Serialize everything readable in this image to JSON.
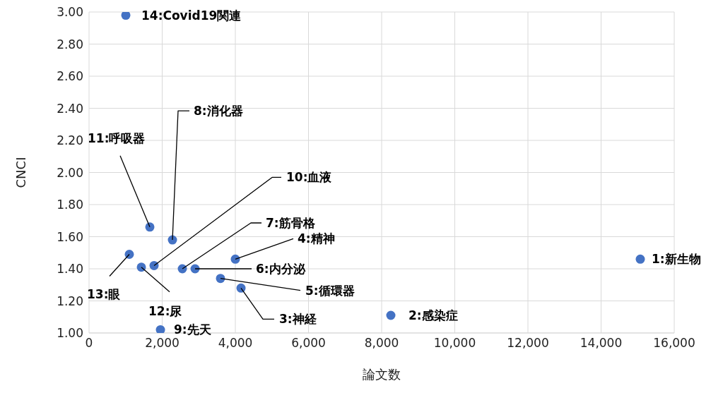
{
  "chart_data": {
    "type": "scatter",
    "xlabel": "論文数",
    "ylabel": "CNCI",
    "x": [
      15072,
      8251,
      4155,
      4000,
      3594,
      2899,
      2551,
      2280,
      1952,
      1778,
      1662,
      1430,
      1101,
      1005
    ],
    "series": [
      {
        "color": "#4472c4",
        "values": [
          1.46,
          1.11,
          1.28,
          1.46,
          1.34,
          1.4,
          1.4,
          1.58,
          1.02,
          1.42,
          1.66,
          1.41,
          1.49,
          2.98
        ]
      }
    ],
    "xlim": [
      0,
      16000
    ],
    "xticks": [
      0,
      {
        "value": 2000,
        "label": "2,000"
      },
      {
        "value": 4000,
        "label": "4,000"
      },
      {
        "value": 6000,
        "label": "6,000"
      },
      {
        "value": 8000,
        "label": "8,000"
      },
      {
        "value": 10000,
        "label": "10,000"
      },
      {
        "value": 12000,
        "label": "12,000"
      },
      {
        "value": 14000,
        "label": "14,000"
      },
      {
        "value": 16000,
        "label": "16,000"
      }
    ],
    "ylim": [
      1,
      3
    ],
    "yticks": [
      {
        "value": 1,
        "label": "1.00"
      },
      {
        "value": 1.2,
        "label": "1.20"
      },
      {
        "value": 1.4,
        "label": "1.40"
      },
      {
        "value": 1.6,
        "label": "1.60"
      },
      {
        "value": 1.8,
        "label": "1.80"
      },
      {
        "value": 2,
        "label": "2.00"
      },
      {
        "value": 2.2,
        "label": "2.20"
      },
      {
        "value": 2.4,
        "label": "2.40"
      },
      {
        "value": 2.6,
        "label": "2.60"
      },
      {
        "value": 2.8,
        "label": "2.80"
      },
      {
        "value": 3,
        "label": "3.00"
      }
    ],
    "grid": true,
    "marker": "circle",
    "legend": false,
    "annotations": [
      {
        "text": "1:新生物",
        "x": 15072,
        "y": 1.46
      },
      {
        "text": "2:感染症",
        "x": 8251,
        "y": 1.11
      },
      {
        "text": "3:神経",
        "x": 4155,
        "y": 1.28
      },
      {
        "text": "4:精神",
        "x": 4000,
        "y": 1.46
      },
      {
        "text": "5:循環器",
        "x": 3594,
        "y": 1.34
      },
      {
        "text": "6:内分泌",
        "x": 2899,
        "y": 1.4
      },
      {
        "text": "7:筋骨格",
        "x": 2551,
        "y": 1.4
      },
      {
        "text": "8:消化器",
        "x": 2280,
        "y": 1.58
      },
      {
        "text": "9:先天",
        "x": 1952,
        "y": 1.02
      },
      {
        "text": "10:血液",
        "x": 1778,
        "y": 1.42
      },
      {
        "text": "11:呼吸器",
        "x": 1662,
        "y": 1.66
      },
      {
        "text": "12:尿",
        "x": 1430,
        "y": 1.41
      },
      {
        "text": "13:眼",
        "x": 1101,
        "y": 1.49
      },
      {
        "text": "14:Covid19関連",
        "x": 1005,
        "y": 2.98
      }
    ]
  }
}
